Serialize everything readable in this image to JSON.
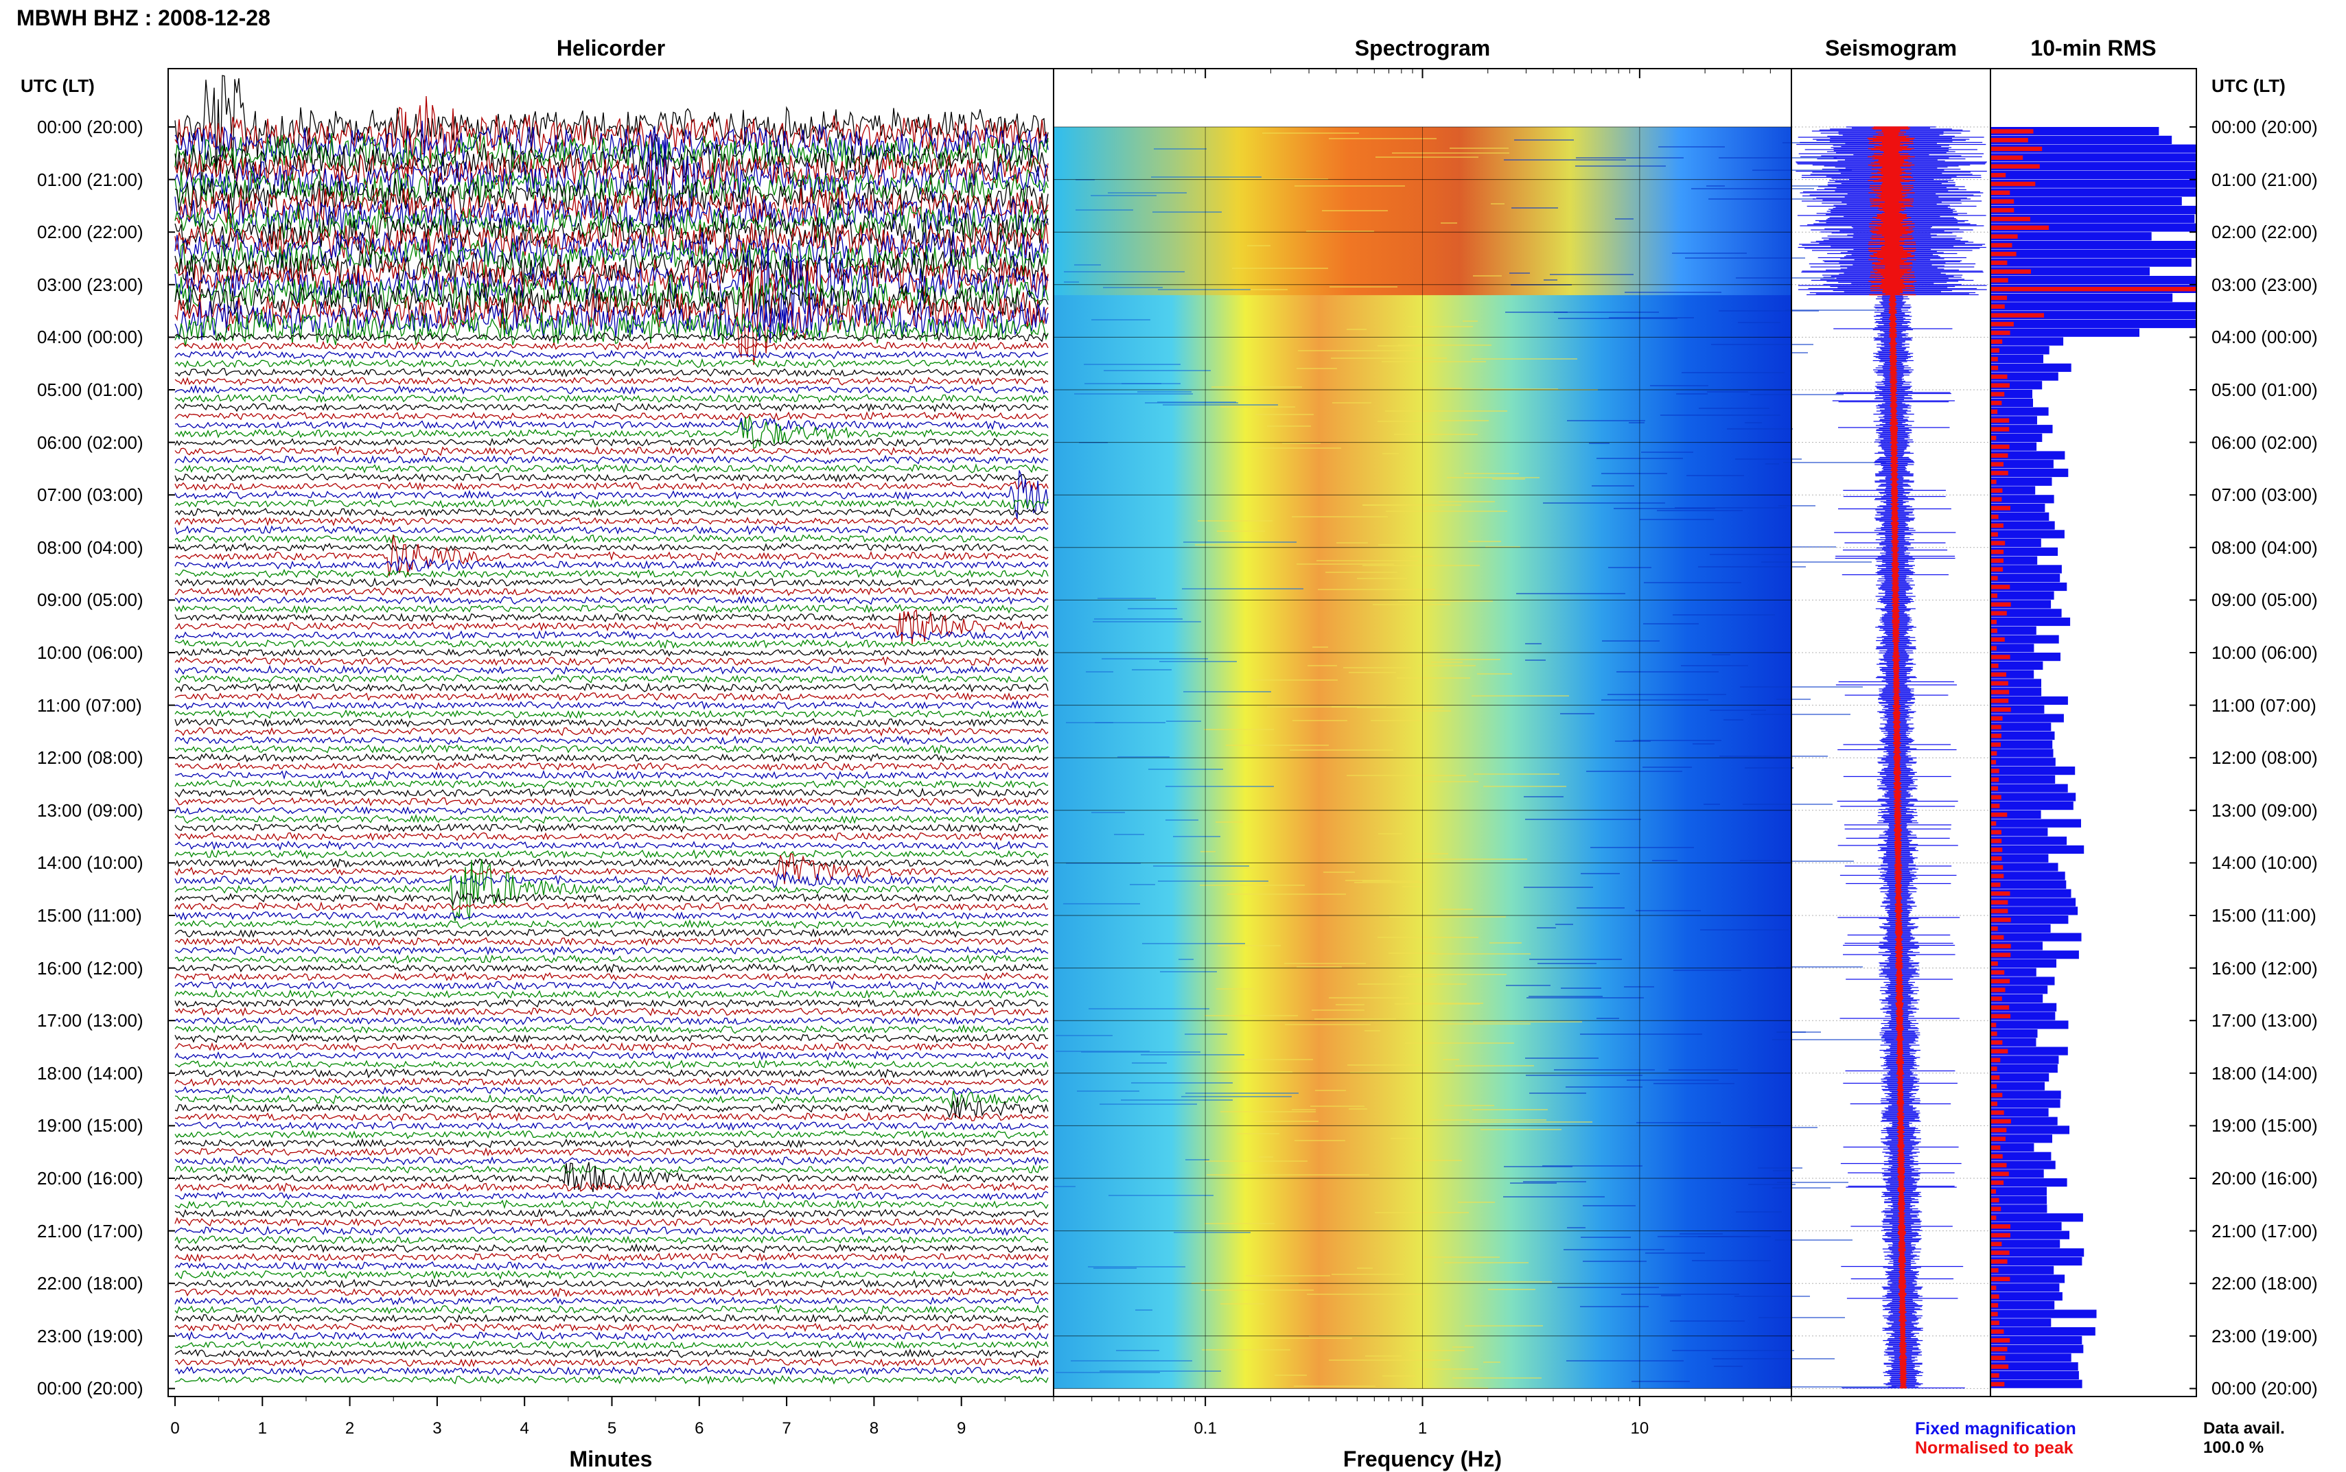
{
  "header": {
    "station": "MBWH BHZ : 2008-12-28"
  },
  "panels": {
    "helicorder": "Helicorder",
    "spectrogram": "Spectrogram",
    "seismogram": "Seismogram",
    "rms": "10-min RMS"
  },
  "utc_header": "UTC (LT)",
  "time_labels": [
    "00:00 (20:00)",
    "01:00 (21:00)",
    "02:00 (22:00)",
    "03:00 (23:00)",
    "04:00 (00:00)",
    "05:00 (01:00)",
    "06:00 (02:00)",
    "07:00 (03:00)",
    "08:00 (04:00)",
    "09:00 (05:00)",
    "10:00 (06:00)",
    "11:00 (07:00)",
    "12:00 (08:00)",
    "13:00 (09:00)",
    "14:00 (10:00)",
    "15:00 (11:00)",
    "16:00 (12:00)",
    "17:00 (13:00)",
    "18:00 (14:00)",
    "19:00 (15:00)",
    "20:00 (16:00)",
    "21:00 (17:00)",
    "22:00 (18:00)",
    "23:00 (19:00)",
    "00:00 (20:00)"
  ],
  "axes": {
    "helicorder_xlabel": "Minutes",
    "helicorder_ticks": [
      "0",
      "1",
      "2",
      "3",
      "4",
      "5",
      "6",
      "7",
      "8",
      "9"
    ],
    "spectrogram_xlabel": "Frequency (Hz)",
    "spectrogram_ticks": [
      "0.1",
      "1",
      "10"
    ]
  },
  "legend": {
    "fixed": "Fixed magnification",
    "normalised": "Normalised to peak",
    "fixed_color": "#1010ee",
    "normalised_color": "#ee1010"
  },
  "data_availability": {
    "label": "Data avail.",
    "value": "100.0 %"
  },
  "chart_data": [
    {
      "type": "line",
      "panel": "helicorder",
      "x_range": [
        0,
        10
      ],
      "x_unit": "minutes",
      "rows_per_hour": 6,
      "trace_colors": [
        "#000000",
        "#b00000",
        "#0000b0",
        "#008800"
      ],
      "events": [
        {
          "hour": 0.0,
          "minute": 0.5,
          "amp": 3.0
        },
        {
          "hour": 0.2,
          "minute": 2.7,
          "amp": 2.5
        },
        {
          "hour": 1.0,
          "minute": 5.5,
          "amp": 2.5
        },
        {
          "hour": 3.0,
          "minute": 6.7,
          "amp": 3.0
        },
        {
          "hour": 3.5,
          "minute": 6.6,
          "amp": 2.5
        },
        {
          "hour": 5.8,
          "minute": 6.6,
          "amp": 1.2
        },
        {
          "hour": 7.0,
          "minute": 9.7,
          "amp": 1.3
        },
        {
          "hour": 8.2,
          "minute": 2.6,
          "amp": 1.3
        },
        {
          "hour": 9.5,
          "minute": 8.4,
          "amp": 1.2
        },
        {
          "hour": 14.5,
          "minute": 3.3,
          "amp": 2.5
        },
        {
          "hour": 14.2,
          "minute": 7.0,
          "amp": 1.2
        },
        {
          "hour": 18.6,
          "minute": 9.0,
          "amp": 0.8
        },
        {
          "hour": 20.0,
          "minute": 4.6,
          "amp": 1.0
        }
      ]
    },
    {
      "type": "heatmap",
      "panel": "spectrogram",
      "x_scale": "log",
      "x_range": [
        0.02,
        50
      ],
      "x_unit": "Hz",
      "y_range": [
        0,
        24
      ],
      "y_unit": "hours UTC",
      "colormap": "jet",
      "dominant_band_hz": [
        0.2,
        1.0
      ]
    },
    {
      "type": "line",
      "panel": "seismogram",
      "y_range": [
        0,
        24
      ],
      "y_unit": "hours UTC",
      "series": [
        {
          "name": "Fixed magnification",
          "color": "#1010ee"
        },
        {
          "name": "Normalised to peak",
          "color": "#ee1010"
        }
      ],
      "large_amplitude_hours": [
        0,
        3
      ]
    },
    {
      "type": "bar",
      "panel": "10-min RMS",
      "orientation": "horizontal",
      "y_range": [
        0,
        24
      ],
      "y_unit": "hours UTC",
      "bin_minutes": 10,
      "series": [
        {
          "name": "Fixed magnification",
          "color": "#1010ee"
        },
        {
          "name": "Normalised to peak",
          "color": "#ee1010"
        }
      ],
      "hourly_relative_rms": [
        1.0,
        0.95,
        1.0,
        1.0,
        0.35,
        0.25,
        0.3,
        0.35,
        0.3,
        0.3,
        0.3,
        0.3,
        0.32,
        0.35,
        0.35,
        0.35,
        0.3,
        0.3,
        0.3,
        0.3,
        0.35,
        0.35,
        0.4,
        0.4
      ],
      "normalised_peak_hours": [
        3
      ]
    }
  ]
}
